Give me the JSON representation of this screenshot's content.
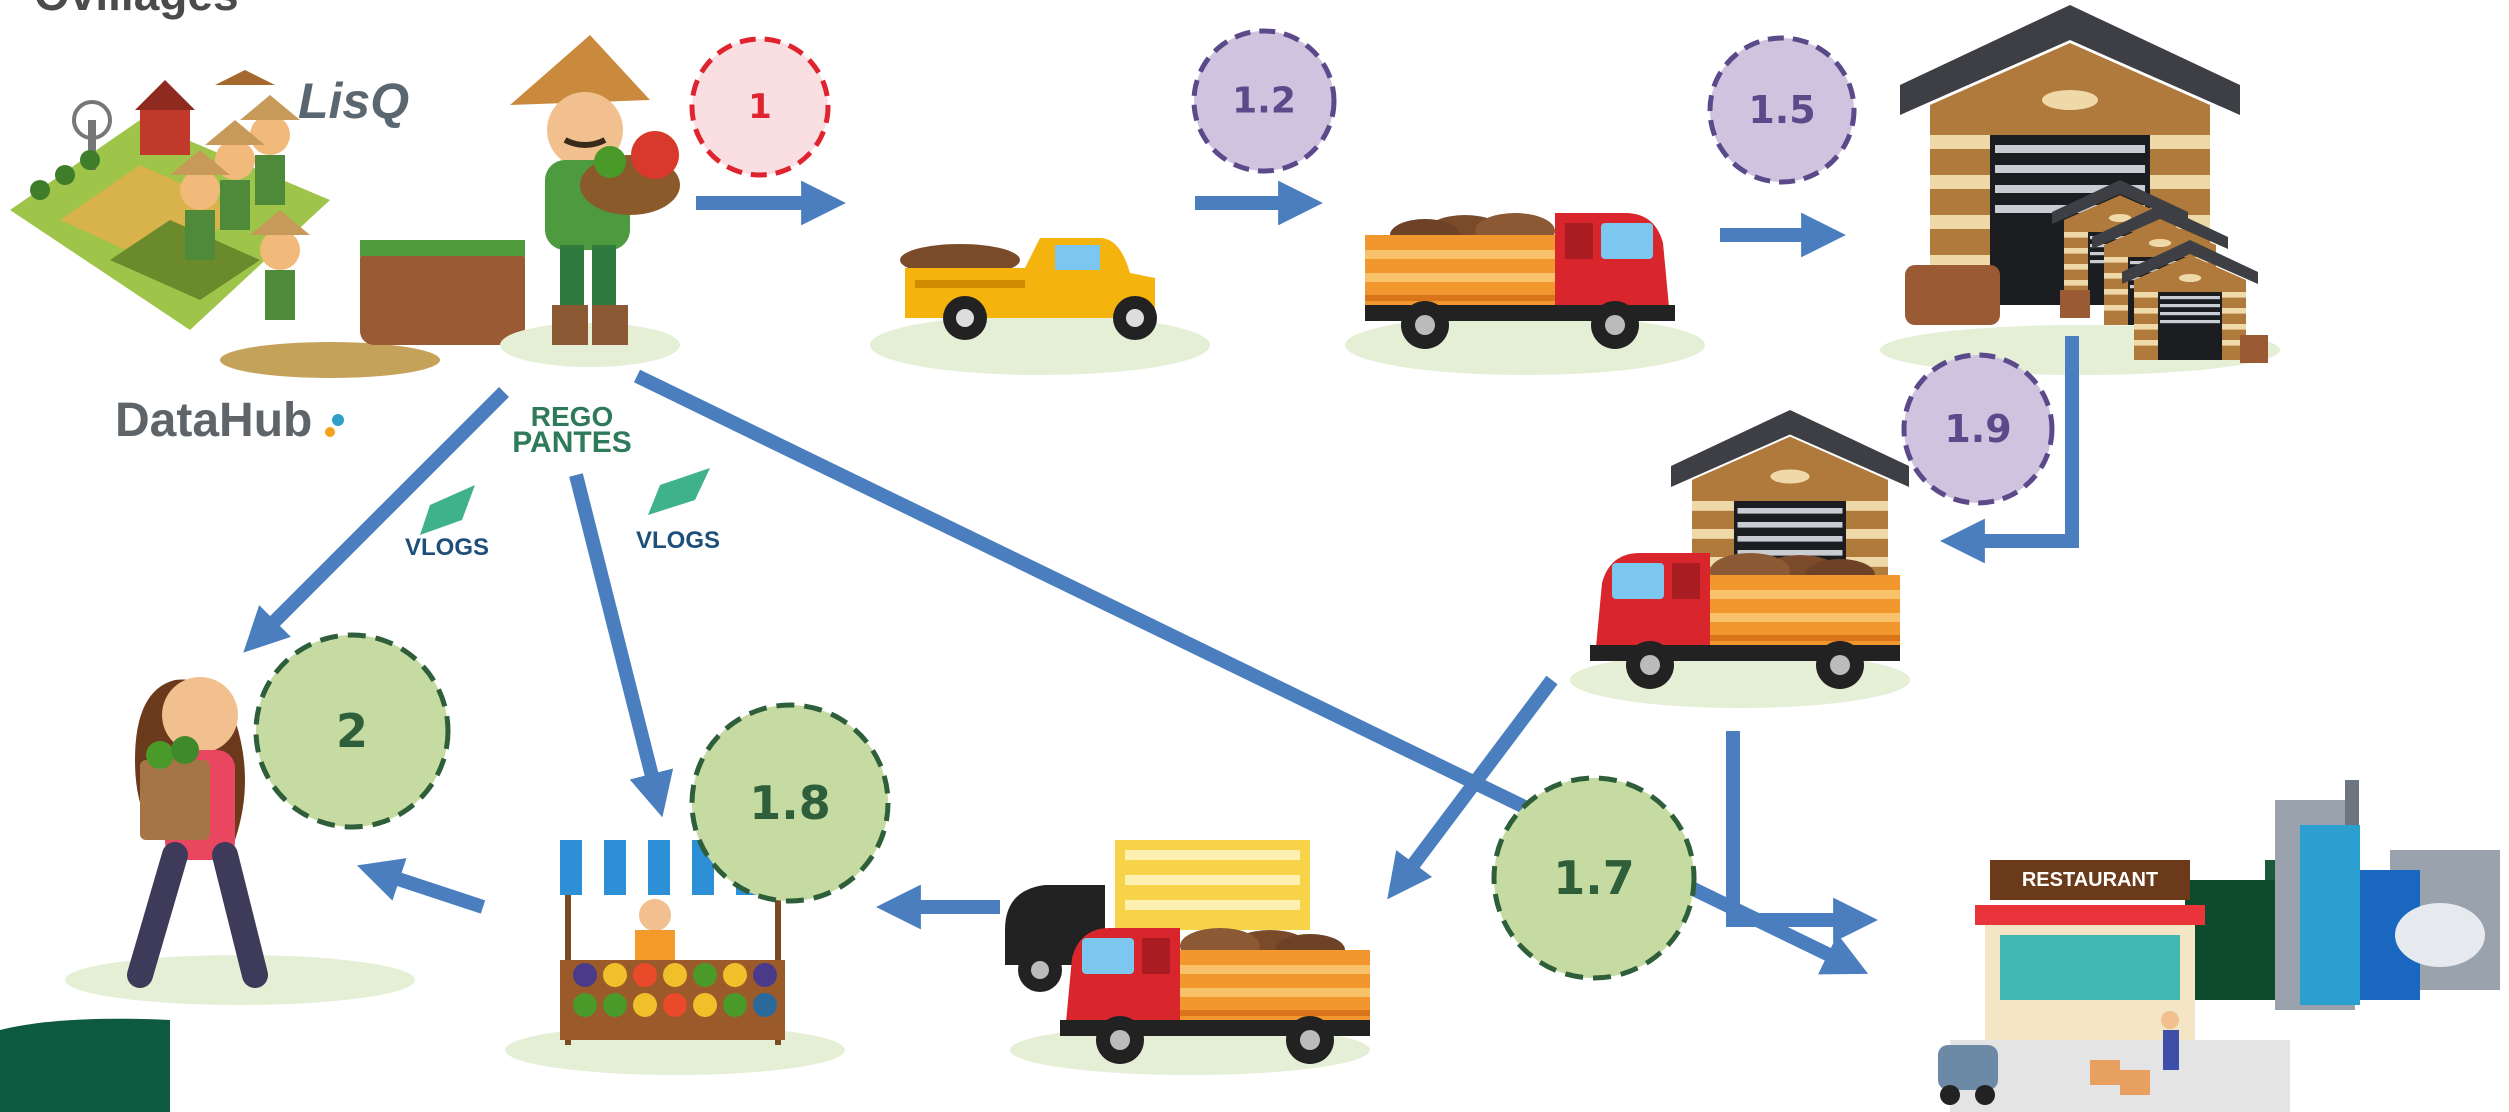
{
  "header": {
    "title": "Ovillages"
  },
  "logos": {
    "lisq": "LisQ",
    "datahub": "DataHub",
    "rego_pantes": [
      "REGO",
      "PANTES"
    ],
    "vlogs": [
      "VLOGS",
      "VLOGS"
    ]
  },
  "steps": [
    "1",
    "1.2",
    "1.5",
    "1.9",
    "2",
    "1.8",
    "1.7"
  ],
  "signs": {
    "restaurant": "RESTAURANT"
  }
}
